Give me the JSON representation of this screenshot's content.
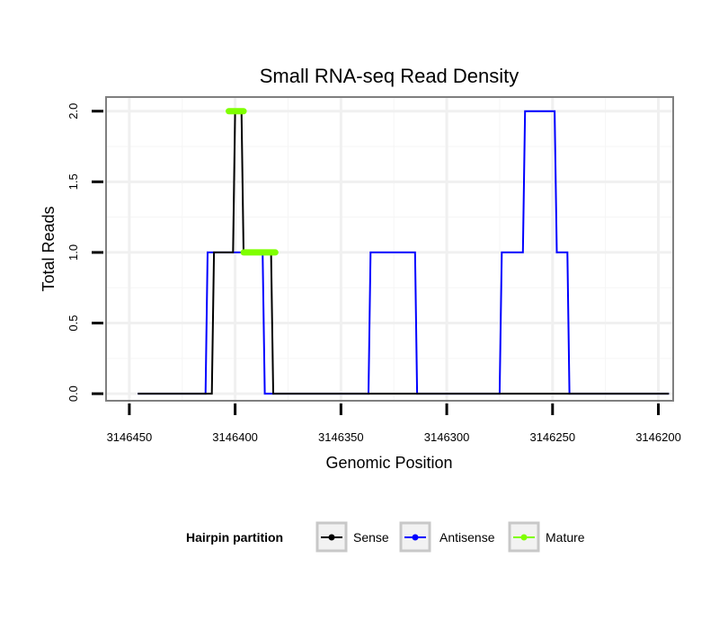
{
  "chart_data": {
    "type": "line",
    "title": "Small RNA-seq Read Density",
    "xlabel": "Genomic Position",
    "ylabel": "Total Reads",
    "xlim": [
      3146461,
      3146193
    ],
    "ylim": [
      -0.05,
      2.1
    ],
    "x_reversed": true,
    "x_ticks": [
      3146450,
      3146400,
      3146350,
      3146300,
      3146250,
      3146200
    ],
    "x_tick_labels": [
      "3146450",
      "3146400",
      "3146350",
      "3146300",
      "3146250",
      "3146200"
    ],
    "y_ticks": [
      0,
      0.5,
      1,
      1.5,
      2
    ],
    "y_tick_labels": [
      "0.0",
      "0.5",
      "1.0",
      "1.5",
      "2.0"
    ],
    "grid": true,
    "legend": {
      "title": "Hairpin partition",
      "position": "bottom",
      "entries": [
        "Sense",
        "Antisense",
        "Mature"
      ]
    },
    "series": [
      {
        "name": "Sense",
        "color": "#000000",
        "x": [
          3146446,
          3146411,
          3146410,
          3146401,
          3146400,
          3146397,
          3146396,
          3146383,
          3146382,
          3146195
        ],
        "y": [
          0,
          0,
          1,
          1,
          2,
          2,
          1,
          1,
          0,
          0
        ]
      },
      {
        "name": "Antisense",
        "color": "#0000FF",
        "x": [
          3146446,
          3146414,
          3146413,
          3146387,
          3146386,
          3146337,
          3146336,
          3146315,
          3146314,
          3146275,
          3146274,
          3146264,
          3146263,
          3146249,
          3146248,
          3146243,
          3146242,
          3146237,
          3146236,
          3146195
        ],
        "y": [
          0,
          0,
          1,
          1,
          0,
          0,
          1,
          1,
          0,
          0,
          1,
          1,
          2,
          2,
          1,
          1,
          0,
          0,
          0,
          0
        ]
      },
      {
        "name": "Mature",
        "color": "#7FFF00",
        "segments": [
          {
            "x": [
              3146403,
              3146396
            ],
            "y": [
              2,
              2
            ]
          },
          {
            "x": [
              3146396,
              3146381
            ],
            "y": [
              1,
              1
            ]
          }
        ]
      }
    ]
  }
}
